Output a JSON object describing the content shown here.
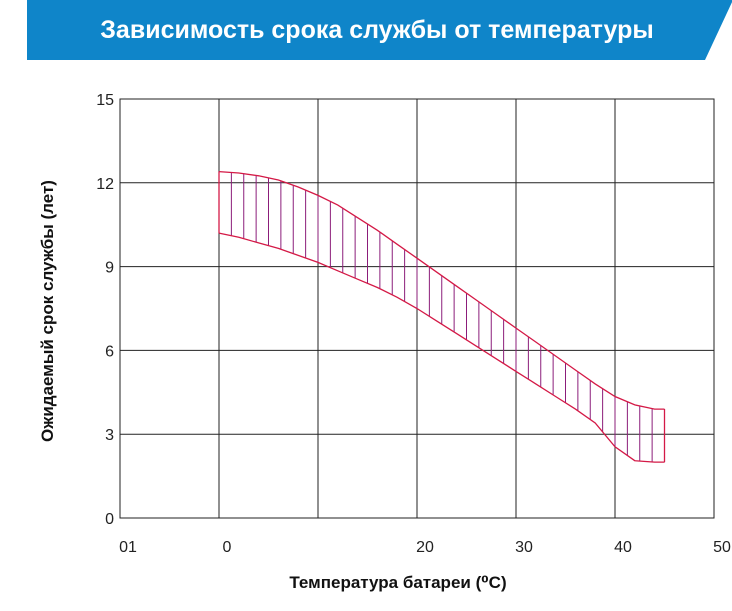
{
  "header": {
    "title": "Зависимость срока службы от температуры"
  },
  "colors": {
    "banner": "#0f85c9",
    "band": "#d41946",
    "hatch": "#8b1d7a",
    "grid": "#222222"
  },
  "chart_data": {
    "type": "area",
    "xlabel": "Температура батареи (⁰С)",
    "ylabel": "Ожидаемый срок службы (лет)",
    "x_ticks": [
      "01",
      "0",
      "20",
      "30",
      "40",
      "50"
    ],
    "y_ticks": [
      "0",
      "3",
      "6",
      "9",
      "12",
      "15"
    ],
    "xlim": [
      -10,
      50
    ],
    "ylim": [
      0,
      15
    ],
    "grid": true,
    "series": [
      {
        "role": "upper",
        "x": [
          0,
          2,
          4,
          6,
          8,
          10,
          12,
          14,
          16,
          18,
          20,
          22,
          24,
          26,
          28,
          30,
          32,
          34,
          36,
          38,
          40,
          42,
          44,
          45
        ],
        "values": [
          12.4,
          12.35,
          12.25,
          12.1,
          11.85,
          11.55,
          11.2,
          10.75,
          10.3,
          9.8,
          9.3,
          8.8,
          8.3,
          7.8,
          7.3,
          6.8,
          6.3,
          5.8,
          5.3,
          4.8,
          4.35,
          4.05,
          3.9,
          3.9
        ]
      },
      {
        "role": "lower",
        "x": [
          0,
          2,
          4,
          6,
          8,
          10,
          12,
          14,
          16,
          18,
          20,
          22,
          24,
          26,
          28,
          30,
          32,
          34,
          36,
          38,
          40,
          42,
          44,
          45
        ],
        "values": [
          10.2,
          10.05,
          9.85,
          9.65,
          9.4,
          9.15,
          8.85,
          8.55,
          8.25,
          7.9,
          7.5,
          7.05,
          6.6,
          6.15,
          5.7,
          5.25,
          4.8,
          4.35,
          3.9,
          3.4,
          2.55,
          2.05,
          2.0,
          2.0
        ]
      }
    ]
  }
}
